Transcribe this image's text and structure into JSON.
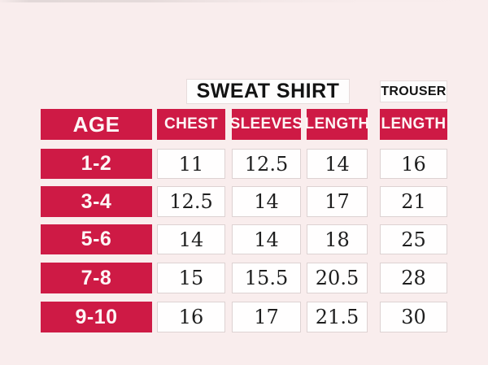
{
  "page": {
    "background_color": "#f9eded",
    "accent_color": "#ce1a45"
  },
  "group_headers": {
    "sweat_shirt": "SWEAT SHIRT",
    "trouser": "TROUSER"
  },
  "table": {
    "headers": {
      "age": "AGE",
      "chest": "CHEST",
      "sleeves": "SLEEVES",
      "length": "LENGTH",
      "trouser_length": "LENGTH"
    },
    "rows": [
      {
        "age": "1-2",
        "chest": "11",
        "sleeves": "12.5",
        "length": "14",
        "trouser_length": "16"
      },
      {
        "age": "3-4",
        "chest": "12.5",
        "sleeves": "14",
        "length": "17",
        "trouser_length": "21"
      },
      {
        "age": "5-6",
        "chest": "14",
        "sleeves": "14",
        "length": "18",
        "trouser_length": "25"
      },
      {
        "age": "7-8",
        "chest": "15",
        "sleeves": "15.5",
        "length": "20.5",
        "trouser_length": "28"
      },
      {
        "age": "9-10",
        "chest": "16",
        "sleeves": "17",
        "length": "21.5",
        "trouser_length": "30"
      }
    ]
  },
  "chart_data": {
    "type": "table",
    "column_groups": [
      {
        "label": "SWEAT SHIRT",
        "columns": [
          "CHEST",
          "SLEEVES",
          "LENGTH"
        ]
      },
      {
        "label": "TROUSER",
        "columns": [
          "LENGTH"
        ]
      }
    ],
    "columns": [
      "AGE",
      "CHEST",
      "SLEEVES",
      "LENGTH",
      "LENGTH"
    ],
    "rows": [
      [
        "1-2",
        11,
        12.5,
        14,
        16
      ],
      [
        "3-4",
        12.5,
        14,
        17,
        21
      ],
      [
        "5-6",
        14,
        14,
        18,
        25
      ],
      [
        "7-8",
        15,
        15.5,
        20.5,
        28
      ],
      [
        "9-10",
        16,
        17,
        21.5,
        30
      ]
    ]
  }
}
